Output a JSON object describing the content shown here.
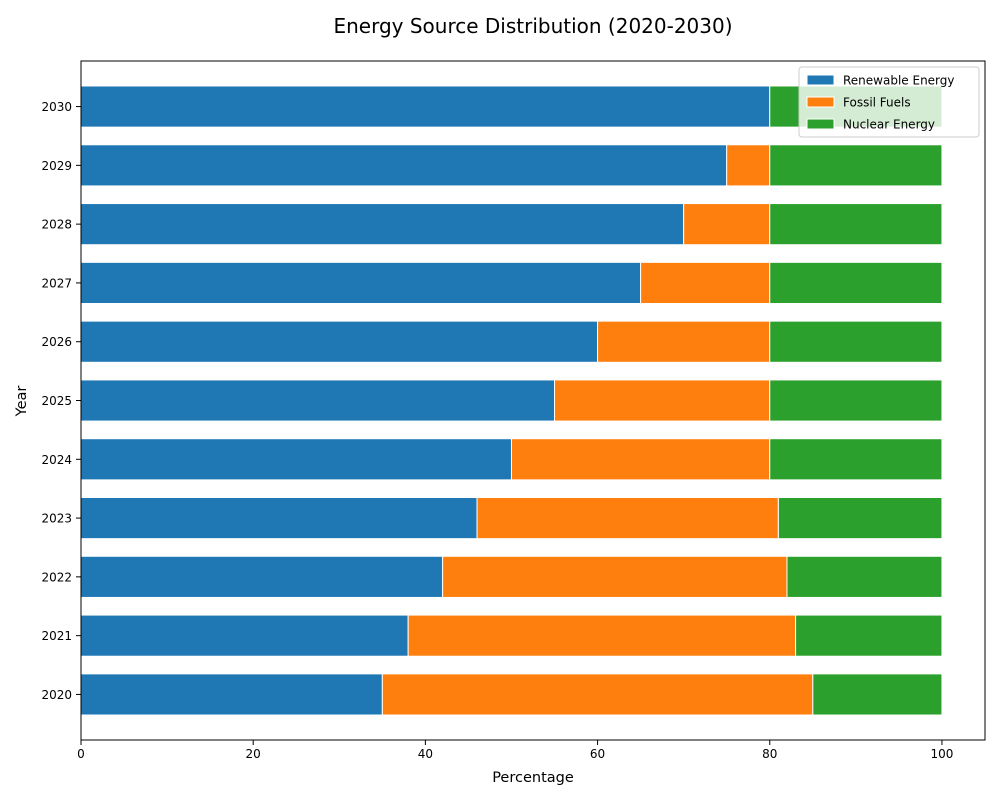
{
  "chart_data": {
    "type": "bar",
    "orientation": "horizontal",
    "stacked": true,
    "title": "Energy Source Distribution (2020-2030)",
    "xlabel": "Percentage",
    "ylabel": "Year",
    "xlim": [
      0,
      105
    ],
    "xticks": [
      0,
      20,
      40,
      60,
      80,
      100
    ],
    "categories": [
      "2020",
      "2021",
      "2022",
      "2023",
      "2024",
      "2025",
      "2026",
      "2027",
      "2028",
      "2029",
      "2030"
    ],
    "series": [
      {
        "name": "Renewable Energy",
        "color": "#1f77b4",
        "values": [
          35,
          38,
          42,
          46,
          50,
          55,
          60,
          65,
          70,
          75,
          80
        ]
      },
      {
        "name": "Fossil Fuels",
        "color": "#ff7f0e",
        "values": [
          50,
          45,
          40,
          35,
          30,
          25,
          20,
          15,
          10,
          5,
          0
        ]
      },
      {
        "name": "Nuclear Energy",
        "color": "#2ca02c",
        "values": [
          15,
          17,
          18,
          19,
          20,
          20,
          20,
          20,
          20,
          20,
          20
        ]
      }
    ],
    "grid": false,
    "legend_position": "top-right"
  }
}
